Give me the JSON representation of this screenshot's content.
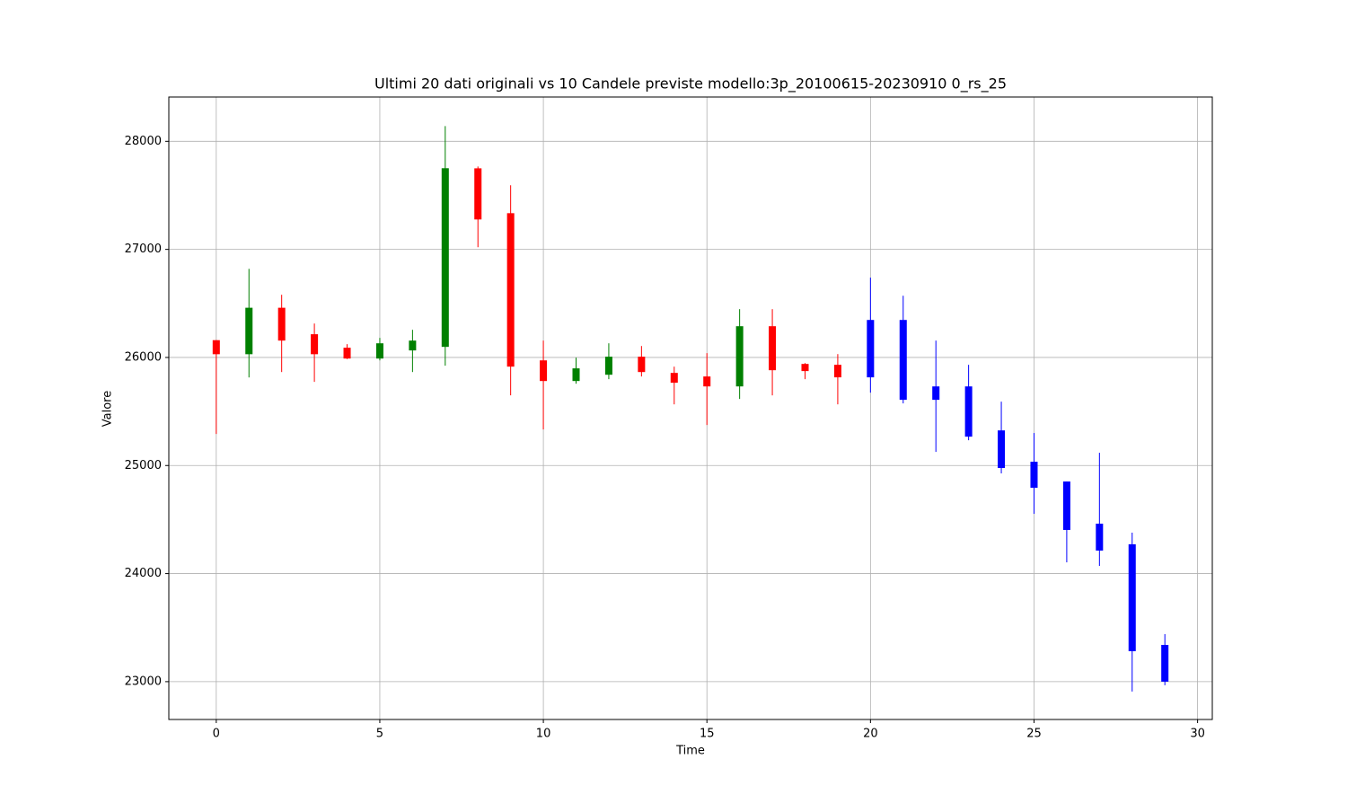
{
  "chart_data": {
    "type": "candlestick",
    "title": "Ultimi 20 dati originali vs 10 Candele previste modello:3p_20100615-20230910 0_rs_25",
    "x_label": "Time",
    "y_label": "Valore",
    "xlim": [
      -1.45,
      30.45
    ],
    "ylim": [
      22650,
      28410
    ],
    "xticks": [
      0,
      5,
      10,
      15,
      20,
      25,
      30
    ],
    "yticks": [
      23000,
      24000,
      25000,
      26000,
      27000,
      28000
    ],
    "grid": true,
    "series": [
      {
        "up_color": "green",
        "down_color": "red",
        "x": [
          0,
          1,
          2,
          3,
          4,
          5,
          6,
          7,
          8,
          9,
          10,
          11,
          12,
          13,
          14,
          15,
          16,
          17,
          18,
          19
        ],
        "open": [
          26160,
          26030,
          26460,
          26215,
          26090,
          25990,
          26065,
          26098,
          27750,
          27335,
          25973,
          25782,
          25840,
          26007,
          25857,
          25824,
          25732,
          26289,
          25940,
          25932
        ],
        "high": [
          26160,
          26820,
          26580,
          26314,
          26123,
          26181,
          26256,
          28141,
          27767,
          27593,
          26156,
          25998,
          26131,
          26106,
          25915,
          26040,
          26447,
          26447,
          25948,
          26031
        ],
        "low": [
          25292,
          25815,
          25865,
          25774,
          25985,
          25973,
          25865,
          25924,
          27020,
          25649,
          25334,
          25757,
          25799,
          25824,
          25566,
          25375,
          25616,
          25649,
          25799,
          25566
        ],
        "close": [
          26030,
          26460,
          26156,
          26030,
          25990,
          26131,
          26156,
          27751,
          27277,
          25915,
          25782,
          25899,
          26007,
          25865,
          25766,
          25732,
          26289,
          25882,
          25874,
          25816
        ]
      },
      {
        "color": "blue",
        "x": [
          20,
          21,
          22,
          23,
          24,
          25,
          26,
          27,
          28,
          29
        ],
        "open": [
          26347,
          26347,
          25732,
          25732,
          25325,
          25035,
          24852,
          24462,
          24271,
          23340
        ],
        "high": [
          26738,
          26571,
          26156,
          25932,
          25591,
          25301,
          24852,
          25118,
          24379,
          23440
        ],
        "low": [
          25674,
          25575,
          25126,
          25234,
          24927,
          24553,
          24104,
          24071,
          22909,
          22967
        ],
        "close": [
          25816,
          25608,
          25608,
          25267,
          24977,
          24794,
          24404,
          24213,
          23282,
          23000
        ]
      }
    ]
  }
}
